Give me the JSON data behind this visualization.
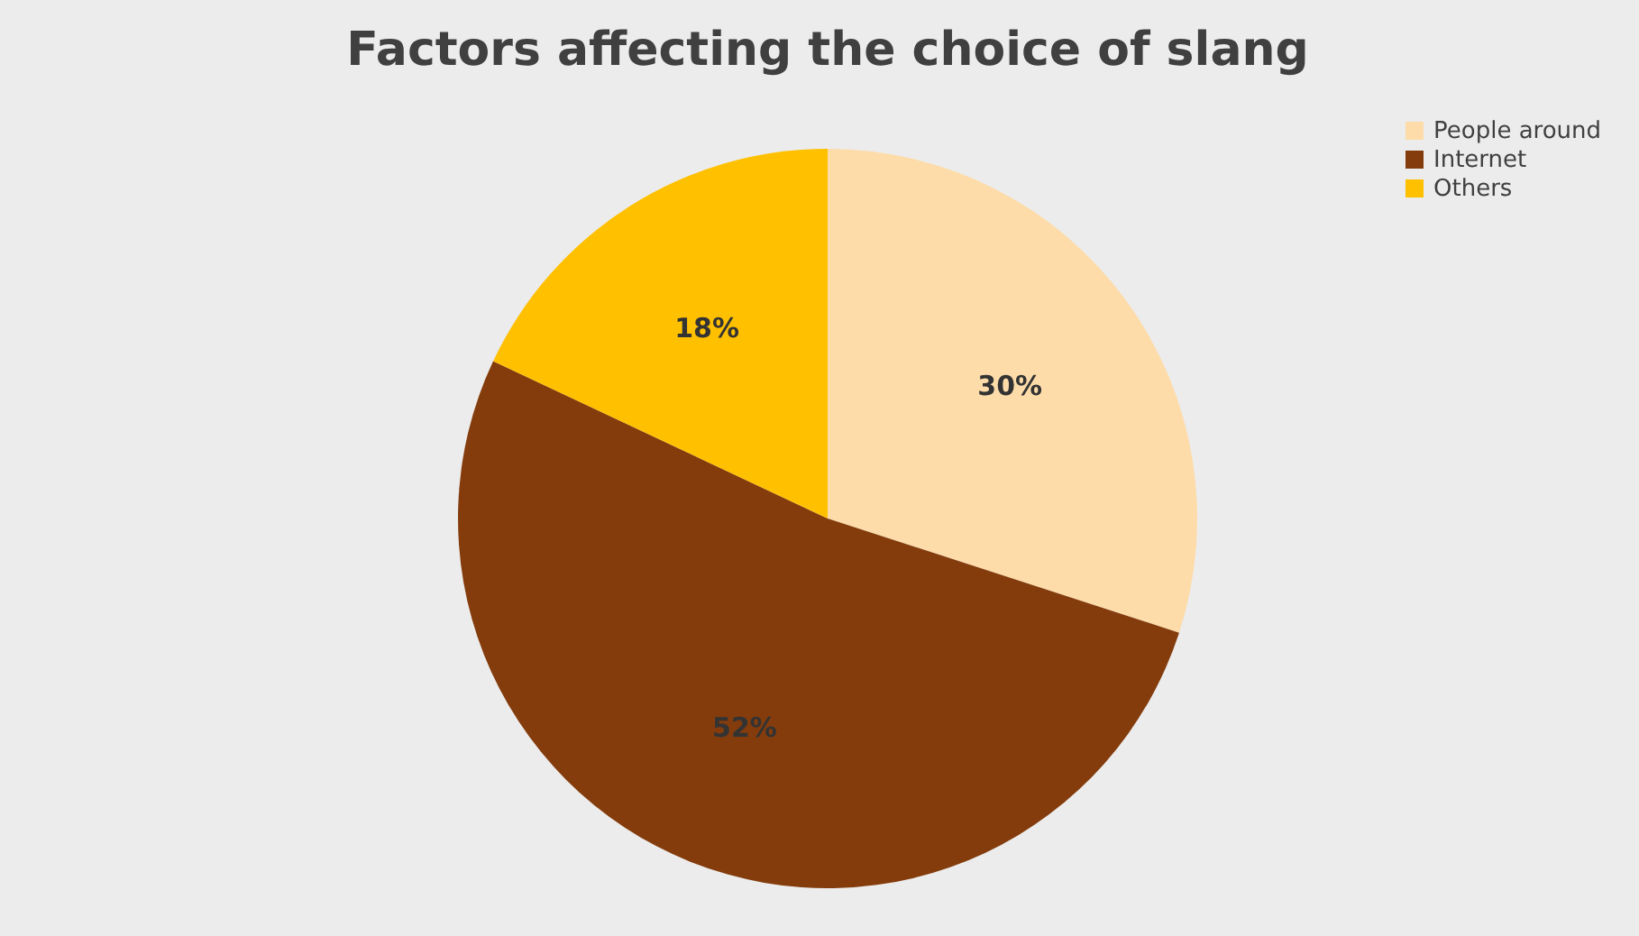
{
  "chart_data": {
    "type": "pie",
    "title": "Factors affecting the choice of slang",
    "categories": [
      "People around",
      "Internet",
      "Others"
    ],
    "values": [
      30,
      52,
      18
    ],
    "value_labels": [
      "30%",
      "52%",
      "18%"
    ],
    "colors": [
      "#fddcaa",
      "#843c0c",
      "#ffc000"
    ],
    "legend": "right"
  }
}
